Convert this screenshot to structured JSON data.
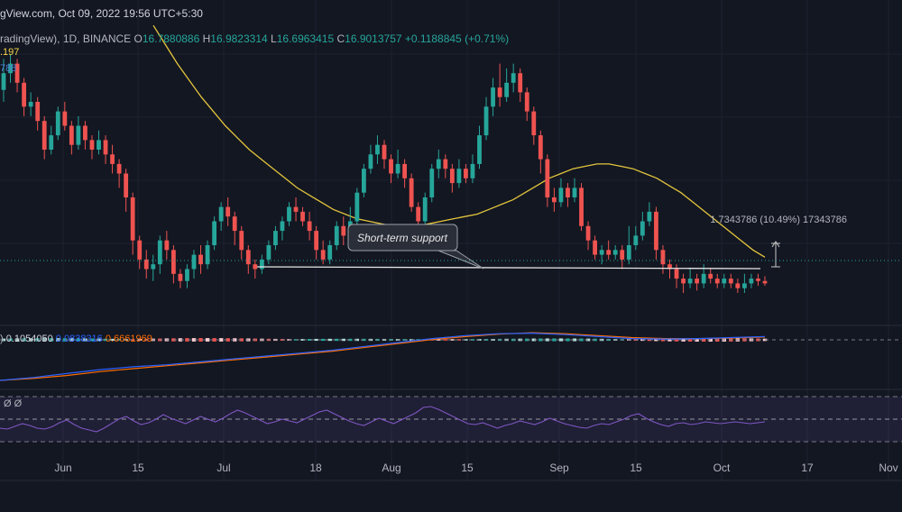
{
  "header": {
    "attribution": "gView.com, Oct 09, 2022 19:56 UTC+5:30",
    "symbol": "radingView), 1D, BINANCE",
    "open_label": "O",
    "open": "16.7880886",
    "high_label": "H",
    "high": "16.9823314",
    "low_label": "L",
    "low": "16.6963415",
    "close_label": "C",
    "close": "16.9013757",
    "change": "+0.1188845 (+0.71%)",
    "indicator1_value": ".197",
    "indicator2_value": "788"
  },
  "annotations": {
    "callout": "Short-term support",
    "measure": "1.7343786 (10.49%) 17343786"
  },
  "macd_legend": {
    "prefix": ")",
    "macd_value": "0.1054050",
    "signal_value": "0.0838316",
    "hist_value": "0.6661969"
  },
  "rsi_legend": "Ø Ø",
  "x_axis_labels": [
    "Jun",
    "15",
    "Jul",
    "18",
    "Aug",
    "15",
    "Sep",
    "15",
    "Oct",
    "17",
    "Nov"
  ],
  "colors": {
    "background": "#131722",
    "up": "#26a69a",
    "down": "#ef5350",
    "ma": "#e3c53c",
    "macd": "#2962ff",
    "signal": "#ff6d00",
    "rsi": "#7e57c2",
    "grid": "#1e2230",
    "support": "#e0e0e0"
  },
  "chart_data": {
    "type": "candlestick",
    "interval": "1D",
    "exchange": "BINANCE",
    "last_ohlc": {
      "open": 16.7880886,
      "high": 16.9823314,
      "low": 16.6963415,
      "close": 16.9013757
    },
    "dates": [
      "2022-05-24",
      "2022-10-09"
    ],
    "candles": [
      [
        0.85,
        0.92,
        0.98,
        0.8
      ],
      [
        0.92,
        0.96,
        1.0,
        0.88
      ],
      [
        0.96,
        0.88,
        0.98,
        0.84
      ],
      [
        0.88,
        0.78,
        0.9,
        0.74
      ],
      [
        0.78,
        0.8,
        0.84,
        0.74
      ],
      [
        0.8,
        0.72,
        0.82,
        0.68
      ],
      [
        0.72,
        0.6,
        0.74,
        0.56
      ],
      [
        0.6,
        0.66,
        0.7,
        0.58
      ],
      [
        0.66,
        0.76,
        0.78,
        0.64
      ],
      [
        0.76,
        0.7,
        0.8,
        0.68
      ],
      [
        0.7,
        0.62,
        0.72,
        0.58
      ],
      [
        0.62,
        0.7,
        0.74,
        0.6
      ],
      [
        0.7,
        0.64,
        0.72,
        0.6
      ],
      [
        0.64,
        0.6,
        0.66,
        0.56
      ],
      [
        0.6,
        0.64,
        0.68,
        0.58
      ],
      [
        0.64,
        0.58,
        0.66,
        0.54
      ],
      [
        0.58,
        0.54,
        0.62,
        0.5
      ],
      [
        0.54,
        0.5,
        0.56,
        0.44
      ],
      [
        0.5,
        0.4,
        0.52,
        0.34
      ],
      [
        0.4,
        0.22,
        0.42,
        0.16
      ],
      [
        0.22,
        0.14,
        0.24,
        0.1
      ],
      [
        0.14,
        0.1,
        0.18,
        0.06
      ],
      [
        0.1,
        0.12,
        0.16,
        0.05
      ],
      [
        0.12,
        0.22,
        0.24,
        0.08
      ],
      [
        0.22,
        0.18,
        0.26,
        0.14
      ],
      [
        0.18,
        0.08,
        0.2,
        0.04
      ],
      [
        0.08,
        0.05,
        0.1,
        0.02
      ],
      [
        0.05,
        0.1,
        0.12,
        0.02
      ],
      [
        0.1,
        0.16,
        0.18,
        0.06
      ],
      [
        0.16,
        0.12,
        0.2,
        0.08
      ],
      [
        0.12,
        0.2,
        0.22,
        0.1
      ],
      [
        0.2,
        0.3,
        0.32,
        0.18
      ],
      [
        0.3,
        0.36,
        0.38,
        0.26
      ],
      [
        0.36,
        0.32,
        0.4,
        0.28
      ],
      [
        0.32,
        0.26,
        0.34,
        0.2
      ],
      [
        0.26,
        0.18,
        0.28,
        0.14
      ],
      [
        0.18,
        0.12,
        0.2,
        0.08
      ],
      [
        0.12,
        0.1,
        0.14,
        0.06
      ],
      [
        0.1,
        0.14,
        0.16,
        0.08
      ],
      [
        0.14,
        0.2,
        0.22,
        0.12
      ],
      [
        0.2,
        0.26,
        0.28,
        0.18
      ],
      [
        0.26,
        0.3,
        0.32,
        0.22
      ],
      [
        0.3,
        0.36,
        0.38,
        0.28
      ],
      [
        0.36,
        0.34,
        0.4,
        0.3
      ],
      [
        0.34,
        0.3,
        0.36,
        0.28
      ],
      [
        0.3,
        0.26,
        0.34,
        0.22
      ],
      [
        0.26,
        0.18,
        0.28,
        0.14
      ],
      [
        0.18,
        0.14,
        0.22,
        0.12
      ],
      [
        0.14,
        0.2,
        0.22,
        0.12
      ],
      [
        0.2,
        0.28,
        0.3,
        0.18
      ],
      [
        0.28,
        0.24,
        0.32,
        0.2
      ],
      [
        0.24,
        0.3,
        0.36,
        0.22
      ],
      [
        0.3,
        0.42,
        0.44,
        0.28
      ],
      [
        0.42,
        0.52,
        0.54,
        0.4
      ],
      [
        0.52,
        0.58,
        0.62,
        0.5
      ],
      [
        0.58,
        0.62,
        0.66,
        0.54
      ],
      [
        0.62,
        0.56,
        0.64,
        0.52
      ],
      [
        0.56,
        0.5,
        0.58,
        0.46
      ],
      [
        0.5,
        0.54,
        0.6,
        0.48
      ],
      [
        0.54,
        0.48,
        0.56,
        0.44
      ],
      [
        0.48,
        0.36,
        0.5,
        0.34
      ],
      [
        0.36,
        0.3,
        0.38,
        0.28
      ],
      [
        0.3,
        0.4,
        0.42,
        0.28
      ],
      [
        0.4,
        0.52,
        0.54,
        0.38
      ],
      [
        0.52,
        0.56,
        0.6,
        0.48
      ],
      [
        0.56,
        0.52,
        0.58,
        0.48
      ],
      [
        0.52,
        0.46,
        0.54,
        0.42
      ],
      [
        0.46,
        0.52,
        0.56,
        0.44
      ],
      [
        0.52,
        0.48,
        0.54,
        0.46
      ],
      [
        0.48,
        0.54,
        0.58,
        0.46
      ],
      [
        0.54,
        0.66,
        0.7,
        0.52
      ],
      [
        0.66,
        0.78,
        0.82,
        0.64
      ],
      [
        0.78,
        0.86,
        0.9,
        0.74
      ],
      [
        0.86,
        0.82,
        0.96,
        0.78
      ],
      [
        0.82,
        0.88,
        0.94,
        0.8
      ],
      [
        0.88,
        0.92,
        0.96,
        0.84
      ],
      [
        0.92,
        0.84,
        0.94,
        0.8
      ],
      [
        0.84,
        0.76,
        0.86,
        0.72
      ],
      [
        0.76,
        0.66,
        0.78,
        0.62
      ],
      [
        0.66,
        0.56,
        0.68,
        0.5
      ],
      [
        0.56,
        0.4,
        0.58,
        0.36
      ],
      [
        0.4,
        0.38,
        0.44,
        0.34
      ],
      [
        0.38,
        0.44,
        0.48,
        0.36
      ],
      [
        0.44,
        0.4,
        0.46,
        0.36
      ],
      [
        0.4,
        0.44,
        0.48,
        0.38
      ],
      [
        0.44,
        0.28,
        0.46,
        0.26
      ],
      [
        0.28,
        0.22,
        0.3,
        0.18
      ],
      [
        0.22,
        0.16,
        0.24,
        0.14
      ],
      [
        0.16,
        0.18,
        0.2,
        0.12
      ],
      [
        0.18,
        0.16,
        0.22,
        0.14
      ],
      [
        0.16,
        0.18,
        0.2,
        0.14
      ],
      [
        0.18,
        0.14,
        0.2,
        0.1
      ],
      [
        0.14,
        0.2,
        0.28,
        0.12
      ],
      [
        0.2,
        0.24,
        0.28,
        0.18
      ],
      [
        0.24,
        0.3,
        0.34,
        0.22
      ],
      [
        0.3,
        0.34,
        0.38,
        0.28
      ],
      [
        0.34,
        0.18,
        0.36,
        0.14
      ],
      [
        0.18,
        0.12,
        0.2,
        0.08
      ],
      [
        0.12,
        0.1,
        0.14,
        0.06
      ],
      [
        0.1,
        0.06,
        0.12,
        0.02
      ],
      [
        0.06,
        0.04,
        0.08,
        0.0
      ],
      [
        0.04,
        0.06,
        0.1,
        0.02
      ],
      [
        0.06,
        0.04,
        0.08,
        0.01
      ],
      [
        0.04,
        0.08,
        0.12,
        0.02
      ],
      [
        0.08,
        0.06,
        0.1,
        0.04
      ],
      [
        0.06,
        0.04,
        0.08,
        0.02
      ],
      [
        0.04,
        0.06,
        0.08,
        0.02
      ],
      [
        0.06,
        0.04,
        0.08,
        0.02
      ],
      [
        0.04,
        0.02,
        0.06,
        0.0
      ],
      [
        0.02,
        0.04,
        0.08,
        0.0
      ],
      [
        0.04,
        0.06,
        0.08,
        0.02
      ],
      [
        0.06,
        0.05,
        0.08,
        0.03
      ],
      [
        0.05,
        0.04,
        0.07,
        0.03
      ]
    ],
    "moving_average": [
      1.12,
      1.04,
      0.96,
      0.89,
      0.82,
      0.76,
      0.7,
      0.65,
      0.6,
      0.56,
      0.52,
      0.48,
      0.44,
      0.41,
      0.38,
      0.35,
      0.33,
      0.31,
      0.3,
      0.29,
      0.28,
      0.28,
      0.28,
      0.29,
      0.3,
      0.31,
      0.32,
      0.33,
      0.35,
      0.37,
      0.39,
      0.42,
      0.45,
      0.48,
      0.5,
      0.52,
      0.53,
      0.54,
      0.54,
      0.53,
      0.52,
      0.5,
      0.48,
      0.45,
      0.42,
      0.38,
      0.34,
      0.3,
      0.26,
      0.22,
      0.18,
      0.15
    ],
    "macd": [
      0.0,
      0.06,
      0.14,
      0.22,
      0.28,
      0.32,
      0.38,
      0.44,
      0.5,
      0.56,
      0.62,
      0.7,
      0.78,
      0.86,
      0.92,
      0.96,
      0.97,
      0.94,
      0.9,
      0.86,
      0.85,
      0.86,
      0.88,
      0.9
    ],
    "signal": [
      0.0,
      0.04,
      0.1,
      0.18,
      0.24,
      0.3,
      0.36,
      0.42,
      0.48,
      0.54,
      0.6,
      0.68,
      0.76,
      0.84,
      0.9,
      0.95,
      0.98,
      0.96,
      0.92,
      0.88,
      0.86,
      0.86,
      0.87,
      0.89
    ],
    "rsi": [
      0.3,
      0.28,
      0.34,
      0.4,
      0.36,
      0.3,
      0.28,
      0.33,
      0.42,
      0.48,
      0.38,
      0.3,
      0.26,
      0.22,
      0.3,
      0.4,
      0.5,
      0.56,
      0.46,
      0.38,
      0.42,
      0.5,
      0.6,
      0.52,
      0.46,
      0.4,
      0.48,
      0.56,
      0.5,
      0.44,
      0.52,
      0.62,
      0.7,
      0.64,
      0.56,
      0.48,
      0.4,
      0.44,
      0.5,
      0.46,
      0.42,
      0.5,
      0.58,
      0.66,
      0.7,
      0.62,
      0.54,
      0.46,
      0.4,
      0.36,
      0.44,
      0.52,
      0.46,
      0.4,
      0.48,
      0.56,
      0.64,
      0.76,
      0.78,
      0.72,
      0.64,
      0.56,
      0.48,
      0.4,
      0.38,
      0.42,
      0.36,
      0.3,
      0.36,
      0.4,
      0.46,
      0.42,
      0.38,
      0.44,
      0.52,
      0.46,
      0.4,
      0.36,
      0.32,
      0.3,
      0.36,
      0.4,
      0.38,
      0.44,
      0.5,
      0.58,
      0.62,
      0.52,
      0.44,
      0.38,
      0.34,
      0.4,
      0.42,
      0.38,
      0.4,
      0.44,
      0.42,
      0.4,
      0.42,
      0.44,
      0.42,
      0.4,
      0.42,
      0.44
    ]
  }
}
